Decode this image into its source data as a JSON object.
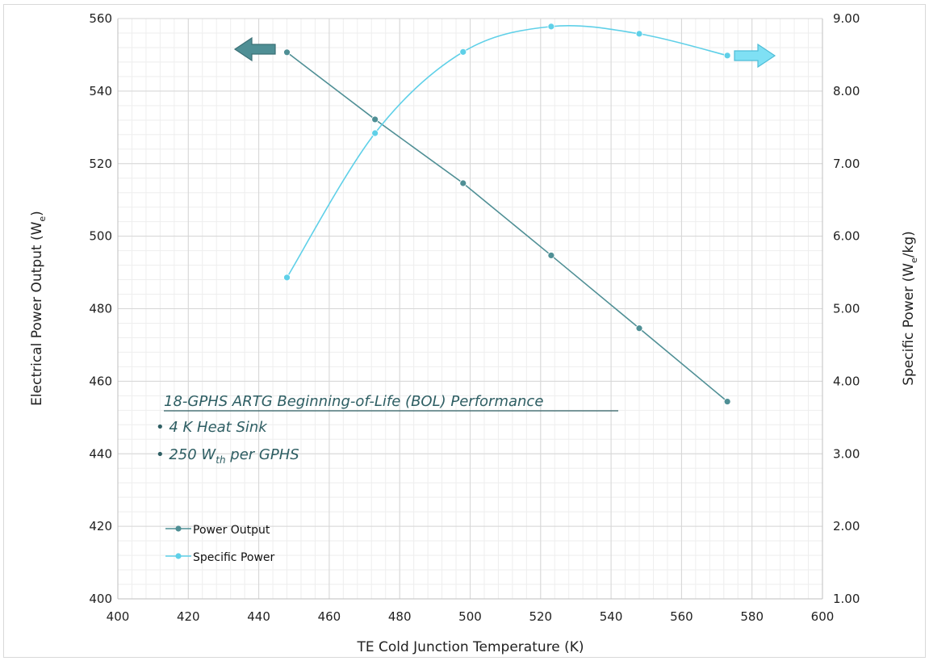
{
  "chart_data": {
    "type": "line",
    "xlabel": "TE Cold Junction Temperature (K)",
    "ylabel": {
      "text": "Electrical Power Output (W",
      "sub": "e",
      "suffix": ")"
    },
    "y2label": {
      "text": "Specific Power (W",
      "sub": "e",
      "suffix": "/kg)"
    },
    "xlim": [
      400,
      600
    ],
    "ylim": [
      400,
      560
    ],
    "y2lim": [
      1.0,
      9.0
    ],
    "x_ticks": [
      "400",
      "420",
      "440",
      "460",
      "480",
      "500",
      "520",
      "540",
      "560",
      "580",
      "600"
    ],
    "y_ticks": [
      "400",
      "420",
      "440",
      "460",
      "480",
      "500",
      "520",
      "540",
      "560"
    ],
    "y2_ticks": [
      "1.00",
      "2.00",
      "3.00",
      "4.00",
      "5.00",
      "6.00",
      "7.00",
      "8.00",
      "9.00"
    ],
    "grid": true,
    "series": [
      {
        "name": "Power Output",
        "axis": "left",
        "color": "#4f8f95",
        "smooth": false,
        "x": [
          448,
          473,
          498,
          523,
          548,
          573
        ],
        "y": [
          550.7,
          532.2,
          514.6,
          494.7,
          474.6,
          454.4
        ]
      },
      {
        "name": "Specific Power",
        "axis": "right",
        "color": "#5fd0e8",
        "smooth": true,
        "x": [
          448,
          473,
          498,
          523,
          548,
          573
        ],
        "y": [
          5.43,
          7.42,
          8.54,
          8.89,
          8.79,
          8.49
        ]
      }
    ],
    "legend": {
      "placement": "bottom-left"
    },
    "annotation": {
      "title": "18-GPHS ARTG Beginning-of-Life (BOL) Performance",
      "bullets": [
        {
          "text": "4 K Heat Sink",
          "sub": "",
          "suffix": ""
        },
        {
          "text": "250 W",
          "sub": "th",
          "suffix": " per GPHS"
        }
      ]
    },
    "arrows": [
      {
        "direction": "left",
        "axis": "left",
        "color": "#4f8f95"
      },
      {
        "direction": "right",
        "axis": "right",
        "color": "#7fe0f4"
      }
    ]
  }
}
